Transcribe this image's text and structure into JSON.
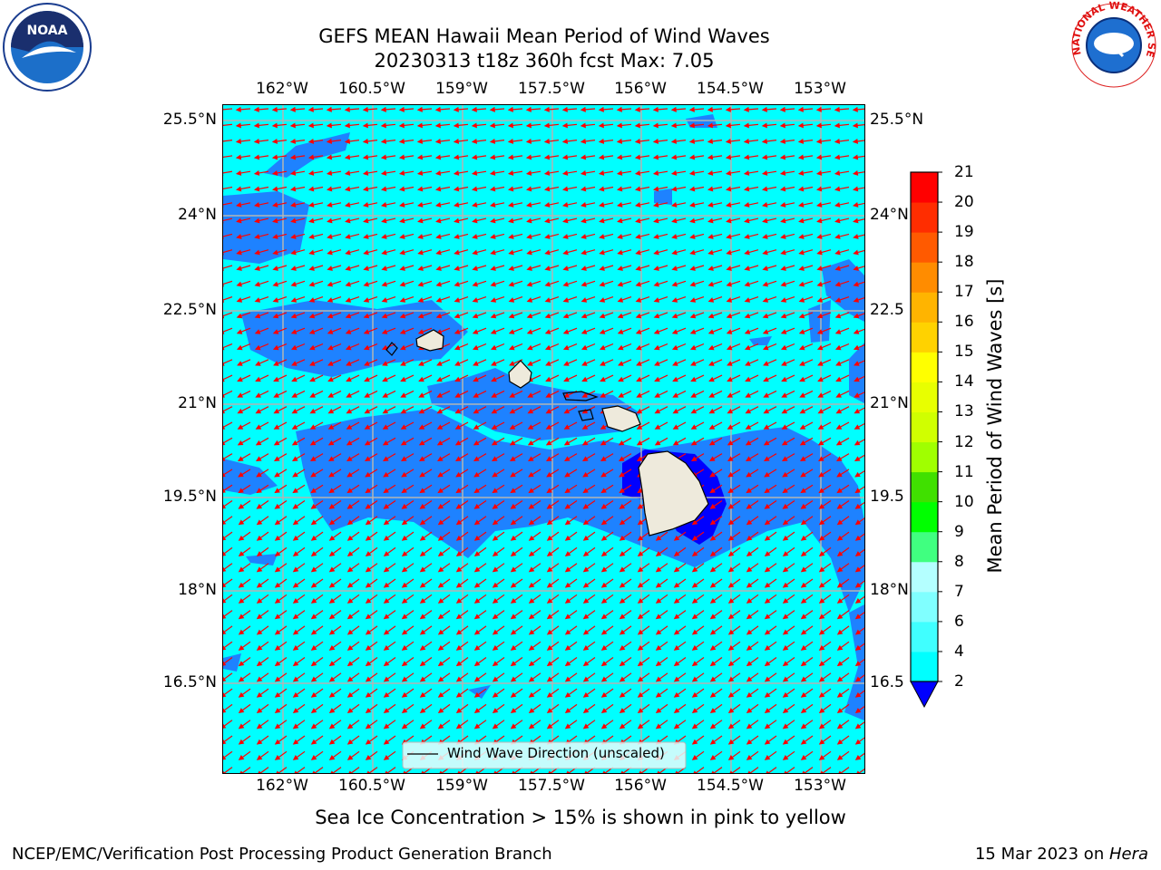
{
  "title": {
    "line1": "GEFS MEAN Hawaii Mean Period of Wind Waves",
    "line2": "20230313 t18z 360h fcst   Max: 7.05"
  },
  "map": {
    "lon_ticks": [
      "162°W",
      "160.5°W",
      "159°W",
      "157.5°W",
      "156°W",
      "154.5°W",
      "153°W"
    ],
    "lat_ticks": [
      "25.5°N",
      "24°N",
      "22.5°N",
      "21°N",
      "19.5°N",
      "18°N",
      "16.5°N"
    ],
    "right_lat_ticks": [
      "25.5°N",
      "24°N",
      "22.5",
      "21°N",
      "19.5",
      "18°N",
      "16.5"
    ],
    "legend_label": "Wind Wave Direction (unscaled)",
    "colors": {
      "ocean_cyan": "#00ffff",
      "medium_blue": "#1e82ff",
      "deep_blue": "#0000ff",
      "arrow": "#ff0000",
      "land": "#eeeadc",
      "grid": "#b4b4b4"
    }
  },
  "colorbar": {
    "label": "Mean Period of Wind Waves [s]",
    "levels": [
      "2",
      "4",
      "6",
      "7",
      "8",
      "9",
      "10",
      "11",
      "12",
      "13",
      "14",
      "15",
      "16",
      "17",
      "18",
      "19",
      "20",
      "21"
    ],
    "colors": [
      "#1e82ff",
      "#00ffff",
      "#40ffff",
      "#80ffff",
      "#b4ffff",
      "#40ff80",
      "#00ff00",
      "#40e000",
      "#a0ff00",
      "#d0ff00",
      "#e8ff00",
      "#ffff00",
      "#ffd200",
      "#ffb400",
      "#ff8c00",
      "#ff5a00",
      "#ff2d00",
      "#ff0000"
    ],
    "extend_color": "#0000ff"
  },
  "note": "Sea Ice Concentration > 15% is shown in pink to yellow",
  "footer": {
    "left": "NCEP/EMC/Verification Post Processing Product Generation Branch",
    "right_prefix": "15 Mar 2023 on ",
    "right_machine": "Hera"
  },
  "logos": {
    "noaa_text": "NOAA",
    "nws_text": "NATIONAL WEATHER SERVICE"
  }
}
